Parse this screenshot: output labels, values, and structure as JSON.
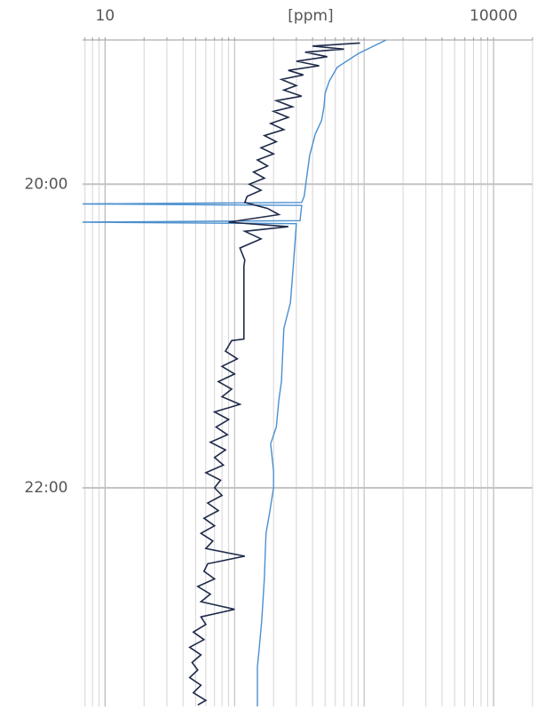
{
  "chart_data": {
    "type": "line",
    "x_label": "[ppm]",
    "x_log_scale": true,
    "xlim": [
      6.7,
      20000
    ],
    "xticks": [
      10,
      10000
    ],
    "ylim": [
      19.05,
      23.44
    ],
    "y_inverted": true,
    "yticks": [
      {
        "value": 20,
        "label": "20:00"
      },
      {
        "value": 22,
        "label": "22:00"
      }
    ],
    "grid": true,
    "series": [
      {
        "color": "#4a8fcf",
        "time": [
          19.05,
          19.14,
          19.23,
          19.32,
          19.4,
          19.49,
          19.58,
          19.67,
          19.81,
          19.96,
          20.08,
          20.12,
          20.13,
          20.14,
          20.24,
          20.25,
          20.26,
          20.54,
          20.78,
          20.95,
          21.13,
          21.3,
          21.42,
          21.6,
          21.71,
          21.89,
          22.0,
          22.18,
          22.3,
          22.47,
          22.59,
          22.77,
          22.88,
          23.06,
          23.18,
          23.44
        ],
        "values": [
          1480,
          900,
          620,
          540,
          500,
          490,
          470,
          420,
          380,
          360,
          345,
          330,
          6.7,
          330,
          320,
          6.7,
          300,
          284,
          270,
          240,
          235,
          230,
          220,
          210,
          190,
          200,
          200,
          185,
          175,
          172,
          170,
          165,
          162,
          155,
          150,
          150
        ]
      },
      {
        "color": "#1f2a4a",
        "time": [
          19.07,
          19.09,
          19.11,
          19.13,
          19.16,
          19.19,
          19.22,
          19.25,
          19.28,
          19.31,
          19.35,
          19.38,
          19.42,
          19.45,
          19.49,
          19.52,
          19.56,
          19.6,
          19.64,
          19.68,
          19.72,
          19.76,
          19.8,
          19.84,
          19.88,
          19.92,
          19.96,
          20.0,
          20.04,
          20.08,
          20.12,
          20.16,
          20.2,
          20.25,
          20.28,
          20.31,
          20.36,
          20.42,
          20.5,
          20.54,
          21.02,
          21.03,
          21.1,
          21.15,
          21.2,
          21.25,
          21.3,
          21.35,
          21.4,
          21.45,
          21.5,
          21.55,
          21.6,
          21.65,
          21.7,
          21.75,
          21.8,
          21.85,
          21.9,
          21.95,
          22.0,
          22.05,
          22.1,
          22.15,
          22.2,
          22.25,
          22.3,
          22.35,
          22.4,
          22.45,
          22.5,
          22.55,
          22.6,
          22.65,
          22.7,
          22.75,
          22.8,
          22.85,
          22.9,
          22.95,
          23.0,
          23.05,
          23.1,
          23.15,
          23.2,
          23.25,
          23.3,
          23.35,
          23.4,
          23.43
        ],
        "values": [
          930,
          400,
          700,
          350,
          520,
          300,
          450,
          260,
          340,
          230,
          300,
          240,
          330,
          210,
          280,
          200,
          260,
          190,
          240,
          170,
          210,
          160,
          200,
          150,
          180,
          140,
          170,
          130,
          160,
          125,
          120,
          180,
          220,
          90,
          260,
          120,
          160,
          110,
          120,
          118,
          118,
          95,
          85,
          105,
          80,
          100,
          75,
          95,
          80,
          110,
          70,
          90,
          72,
          88,
          65,
          85,
          70,
          82,
          60,
          78,
          70,
          80,
          62,
          75,
          58,
          70,
          55,
          68,
          60,
          120,
          62,
          58,
          70,
          52,
          65,
          55,
          100,
          55,
          60,
          48,
          58,
          45,
          55,
          47,
          52,
          45,
          55,
          48,
          60,
          52
        ]
      }
    ]
  }
}
